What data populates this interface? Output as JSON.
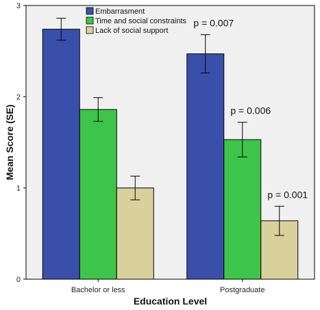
{
  "chart_data": {
    "type": "bar",
    "xlabel": "Education Level",
    "ylabel": "Mean Score (SE)",
    "ylim": [
      0,
      3
    ],
    "yticks": [
      0,
      1,
      2,
      3
    ],
    "grid": false,
    "legend_position": "top-left",
    "categories": [
      "Bachelor or less",
      "Postgraduate"
    ],
    "series": [
      {
        "name": "Embarrasment",
        "color": "#3a4faa",
        "values": [
          2.74,
          2.47
        ],
        "se": [
          0.12,
          0.21
        ]
      },
      {
        "name": "Time and social constraints",
        "color": "#3ec44a",
        "values": [
          1.86,
          1.53
        ],
        "se": [
          0.13,
          0.19
        ]
      },
      {
        "name": "Lack of social support",
        "color": "#d8d19c",
        "values": [
          1.0,
          0.64
        ],
        "se": [
          0.13,
          0.16
        ]
      }
    ],
    "annotations": [
      {
        "category": 1,
        "series": 0,
        "text": "p = 0.007"
      },
      {
        "category": 1,
        "series": 1,
        "text": "p = 0.006"
      },
      {
        "category": 1,
        "series": 2,
        "text": "p = 0.001"
      }
    ],
    "colors": {
      "plot_background": "#f0f0f0",
      "axis": "#000000"
    }
  }
}
